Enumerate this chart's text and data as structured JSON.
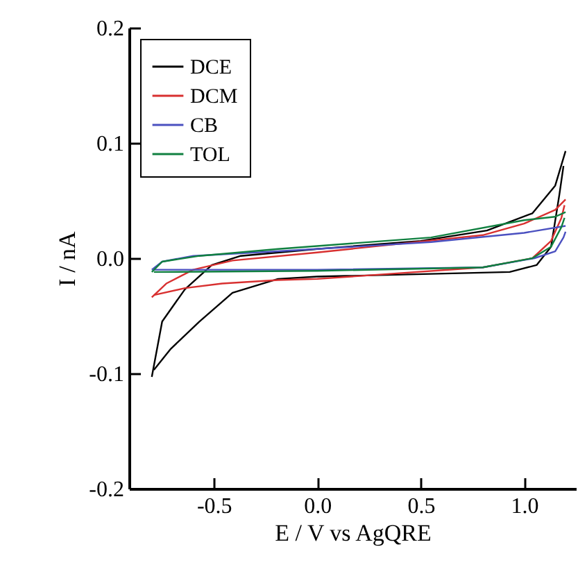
{
  "chart_data": {
    "type": "line",
    "xlabel": "E / V vs AgQRE",
    "ylabel": "I / nA",
    "xlim": [
      -0.91,
      1.25
    ],
    "ylim": [
      -0.2,
      0.2
    ],
    "xticks": [
      {
        "value": -0.5,
        "label": "-0.5"
      },
      {
        "value": 0,
        "label": "0.0"
      },
      {
        "value": 0.5,
        "label": "0.5"
      },
      {
        "value": 1,
        "label": "1.0"
      }
    ],
    "yticks": [
      {
        "value": -0.2,
        "label": "-0.2"
      },
      {
        "value": -0.1,
        "label": "-0.1"
      },
      {
        "value": 0,
        "label": "0.0"
      },
      {
        "value": 0.1,
        "label": "0.1"
      },
      {
        "value": 0.2,
        "label": "0.2"
      }
    ],
    "grid": false,
    "legend": "top left",
    "line_style": "solid",
    "series": [
      {
        "name": "DCE",
        "color": "#000000",
        "x": [
          -0.8,
          -0.75,
          -0.64,
          -0.51,
          -0.37,
          0.0,
          0.5,
          0.82,
          1.04,
          1.15,
          1.2
        ],
        "values": [
          -0.103,
          -0.055,
          -0.027,
          -0.006,
          0.002,
          0.008,
          0.015,
          0.024,
          0.039,
          0.063,
          0.093
        ]
      },
      {
        "color": "#000000",
        "x": [
          1.19,
          1.17,
          1.13,
          1.06,
          0.93,
          0.0,
          -0.19,
          -0.41,
          -0.57,
          -0.71,
          -0.79
        ],
        "values": [
          0.08,
          0.055,
          0.01,
          -0.006,
          -0.012,
          -0.016,
          -0.018,
          -0.03,
          -0.055,
          -0.079,
          -0.097
        ]
      },
      {
        "name": "DCM",
        "color": "#d83030",
        "x": [
          -0.8,
          -0.73,
          -0.6,
          -0.41,
          0.0,
          0.8,
          1.0,
          1.15,
          1.2
        ],
        "values": [
          -0.034,
          -0.022,
          -0.01,
          -0.002,
          0.005,
          0.02,
          0.03,
          0.042,
          0.051
        ]
      },
      {
        "color": "#d83030",
        "x": [
          1.195,
          1.18,
          1.13,
          1.04,
          0.8,
          0.0,
          -0.19,
          -0.46,
          -0.64,
          -0.79
        ],
        "values": [
          0.046,
          0.035,
          0.015,
          0.0,
          -0.008,
          -0.018,
          -0.019,
          -0.022,
          -0.026,
          -0.032
        ]
      },
      {
        "name": "CB",
        "color": "#4a50c0",
        "x": [
          -0.8,
          -0.75,
          -0.6,
          -0.19,
          0.55,
          1.0,
          1.2
        ],
        "values": [
          -0.01,
          -0.003,
          0.002,
          0.006,
          0.014,
          0.022,
          0.028
        ]
      },
      {
        "color": "#4a50c0",
        "x": [
          1.2,
          1.19,
          1.15,
          1.05,
          0.8,
          0.0,
          -0.79
        ],
        "values": [
          0.023,
          0.018,
          0.006,
          0.0,
          -0.008,
          -0.01,
          -0.01
        ]
      },
      {
        "name": "TOL",
        "color": "#108040",
        "x": [
          -0.8,
          -0.75,
          -0.57,
          -0.19,
          0.55,
          1.0,
          1.15,
          1.2
        ],
        "values": [
          -0.012,
          -0.003,
          0.002,
          0.008,
          0.018,
          0.033,
          0.036,
          0.04
        ]
      },
      {
        "color": "#108040",
        "x": [
          1.195,
          1.18,
          1.13,
          1.04,
          0.8,
          0.0,
          -0.79
        ],
        "values": [
          0.035,
          0.027,
          0.01,
          0.0,
          -0.008,
          -0.011,
          -0.012
        ]
      }
    ]
  }
}
